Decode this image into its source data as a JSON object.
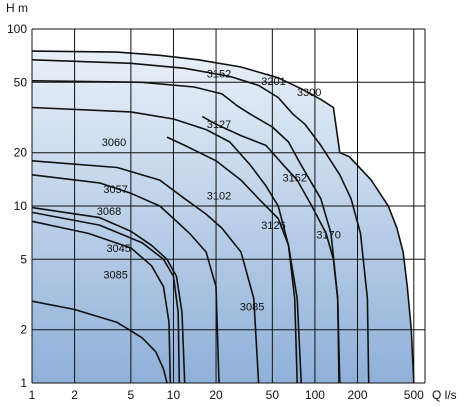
{
  "chart_data": {
    "type": "line",
    "title": "",
    "xlabel": "Q l/s",
    "ylabel": "H m",
    "x_scale": "log",
    "y_scale": "log",
    "xlim": [
      1,
      600
    ],
    "ylim": [
      1,
      100
    ],
    "grid": true,
    "x_ticks": [
      1,
      2,
      5,
      10,
      20,
      50,
      100,
      200,
      500
    ],
    "y_ticks": [
      1,
      2,
      5,
      10,
      20,
      50,
      100
    ],
    "colors": {
      "fill_top": "#eef4fb",
      "fill_bottom": "#8fb0d8",
      "curve": "#111111",
      "grid": "#111111"
    },
    "envelope": [
      [
        1,
        100
      ],
      [
        1,
        75
      ],
      [
        4,
        74
      ],
      [
        8,
        71
      ],
      [
        15,
        67
      ],
      [
        30,
        61
      ],
      [
        55,
        53
      ],
      [
        80,
        46
      ],
      [
        110,
        40
      ],
      [
        135,
        36
      ],
      [
        150,
        20
      ],
      [
        175,
        19
      ],
      [
        250,
        14
      ],
      [
        330,
        10
      ],
      [
        380,
        7.5
      ],
      [
        420,
        5.5
      ],
      [
        450,
        3.5
      ],
      [
        480,
        2
      ],
      [
        500,
        1
      ],
      [
        1,
        1
      ]
    ],
    "series": [
      {
        "name": "3300",
        "points": [
          [
            1,
            75
          ],
          [
            4,
            74
          ],
          [
            8,
            71
          ],
          [
            15,
            67
          ],
          [
            30,
            61
          ],
          [
            55,
            53
          ],
          [
            80,
            46
          ],
          [
            110,
            40
          ],
          [
            135,
            36
          ],
          [
            150,
            20
          ],
          [
            175,
            19
          ],
          [
            250,
            14
          ],
          [
            330,
            10
          ],
          [
            380,
            7.5
          ],
          [
            420,
            5.5
          ],
          [
            450,
            3.5
          ],
          [
            480,
            2
          ],
          [
            500,
            1
          ]
        ]
      },
      {
        "name": "3201",
        "points": [
          [
            1,
            67
          ],
          [
            5,
            64
          ],
          [
            12,
            60
          ],
          [
            25,
            54
          ],
          [
            40,
            48
          ],
          [
            55,
            41
          ],
          [
            70,
            33
          ],
          [
            85,
            29
          ],
          [
            110,
            22
          ],
          [
            150,
            15
          ],
          [
            180,
            11
          ],
          [
            210,
            7
          ],
          [
            235,
            3
          ],
          [
            240,
            1
          ]
        ]
      },
      {
        "name": "3152",
        "points": [
          [
            1,
            51
          ],
          [
            6,
            50
          ],
          [
            14,
            47
          ],
          [
            22,
            43
          ],
          [
            28,
            37
          ],
          [
            35,
            33
          ],
          [
            50,
            28
          ],
          [
            65,
            23
          ],
          [
            80,
            17
          ],
          [
            110,
            11
          ],
          [
            130,
            7
          ],
          [
            145,
            3
          ],
          [
            148,
            1
          ]
        ]
      },
      {
        "name": "3127",
        "points": [
          [
            1,
            36
          ],
          [
            5,
            34
          ],
          [
            10,
            31
          ],
          [
            17,
            27
          ],
          [
            25,
            23
          ],
          [
            35,
            17
          ],
          [
            45,
            13
          ],
          [
            55,
            10
          ],
          [
            65,
            6
          ],
          [
            72,
            3
          ],
          [
            75,
            1
          ]
        ]
      },
      {
        "name": "3170",
        "points": [
          [
            16,
            32
          ],
          [
            20,
            29
          ],
          [
            30,
            25
          ],
          [
            45,
            22
          ],
          [
            60,
            17
          ],
          [
            75,
            14
          ],
          [
            95,
            10
          ],
          [
            120,
            7
          ],
          [
            135,
            5
          ],
          [
            145,
            3
          ],
          [
            150,
            1
          ]
        ]
      },
      {
        "name": "3102",
        "points": [
          [
            1,
            18
          ],
          [
            4,
            16.5
          ],
          [
            8,
            14
          ],
          [
            12,
            11
          ],
          [
            17,
            9
          ],
          [
            22,
            7.5
          ],
          [
            30,
            5.5
          ],
          [
            37,
            3
          ],
          [
            40,
            1
          ]
        ]
      },
      {
        "name": "3126",
        "points": [
          [
            9,
            24.5
          ],
          [
            12,
            22
          ],
          [
            20,
            18
          ],
          [
            30,
            14
          ],
          [
            40,
            11
          ],
          [
            55,
            8.5
          ],
          [
            65,
            6
          ],
          [
            75,
            3
          ],
          [
            80,
            1
          ]
        ]
      },
      {
        "name": "3085",
        "points": [
          [
            1,
            15
          ],
          [
            3,
            13.5
          ],
          [
            5,
            11.8
          ],
          [
            8,
            10
          ],
          [
            10,
            8.5
          ],
          [
            13,
            7
          ],
          [
            17,
            5.5
          ],
          [
            20,
            3.5
          ],
          [
            21,
            1
          ]
        ]
      },
      {
        "name": "3060",
        "points": [
          [
            1,
            9.8
          ],
          [
            3,
            8.6
          ],
          [
            5,
            7.2
          ],
          [
            7,
            6
          ],
          [
            9,
            5
          ],
          [
            10.5,
            4
          ],
          [
            11.5,
            2.5
          ],
          [
            12,
            1
          ]
        ]
      },
      {
        "name": "3057",
        "points": [
          [
            1,
            9.2
          ],
          [
            3,
            7.8
          ],
          [
            6,
            6.2
          ],
          [
            8.5,
            5
          ],
          [
            10,
            4
          ],
          [
            10.8,
            2.5
          ],
          [
            11,
            1
          ]
        ]
      },
      {
        "name": "3068",
        "points": [
          [
            1,
            8.2
          ],
          [
            2.5,
            7
          ],
          [
            5,
            5.8
          ],
          [
            7,
            4.6
          ],
          [
            8.5,
            3.5
          ],
          [
            9.3,
            2.2
          ],
          [
            9.5,
            1
          ]
        ]
      },
      {
        "name": "3045",
        "points": [
          [
            1,
            2.9
          ],
          [
            2,
            2.6
          ],
          [
            4,
            2.2
          ],
          [
            6,
            1.8
          ],
          [
            7.5,
            1.5
          ],
          [
            8.5,
            1.2
          ],
          [
            9,
            1
          ]
        ]
      }
    ],
    "labels": [
      {
        "text": "3152",
        "x": 21,
        "y": 56
      },
      {
        "text": "3201",
        "x": 51,
        "y": 51
      },
      {
        "text": "3300",
        "x": 91,
        "y": 44
      },
      {
        "text": "3127",
        "x": 21,
        "y": 29
      },
      {
        "text": "3060",
        "x": 3.8,
        "y": 23
      },
      {
        "text": "3152",
        "x": 72,
        "y": 14.5
      },
      {
        "text": "3057",
        "x": 3.9,
        "y": 12.5
      },
      {
        "text": "3102",
        "x": 21,
        "y": 11.5
      },
      {
        "text": "3068",
        "x": 3.5,
        "y": 9.4
      },
      {
        "text": "3126",
        "x": 51,
        "y": 7.8
      },
      {
        "text": "3170",
        "x": 125,
        "y": 6.9
      },
      {
        "text": "3045",
        "x": 4.1,
        "y": 5.8
      },
      {
        "text": "3085",
        "x": 3.9,
        "y": 4.1
      },
      {
        "text": "3085",
        "x": 36,
        "y": 2.7
      }
    ]
  }
}
